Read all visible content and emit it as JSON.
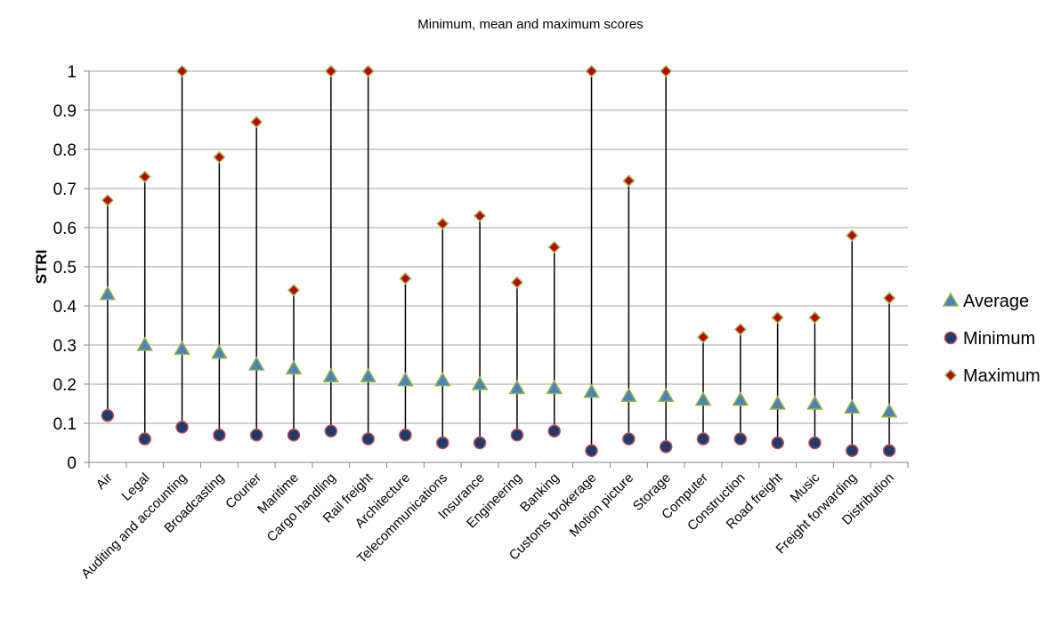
{
  "chart_data": {
    "type": "scatter",
    "title": "Minimum, mean and maximum scores",
    "xlabel": "",
    "ylabel": "STRI",
    "ylim": [
      0,
      1
    ],
    "yticks": [
      "0",
      "0.1",
      "0.2",
      "0.3",
      "0.4",
      "0.5",
      "0.6",
      "0.7",
      "0.8",
      "0.9",
      "1"
    ],
    "grid": true,
    "legend_position": "right",
    "categories": [
      "Air",
      "Legal",
      "Auditing and accounting",
      "Broadcasting",
      "Courier",
      "Maritime",
      "Cargo handling",
      "Rail freight",
      "Architecture",
      "Telecommunications",
      "Insurance",
      "Engineering",
      "Banking",
      "Customs brokerage",
      "Motion picture",
      "Storage",
      "Computer",
      "Construction",
      "Road freight",
      "Music",
      "Freight forwarding",
      "Distribution"
    ],
    "series": [
      {
        "name": "Average",
        "marker": "triangle",
        "color": "#4F81BD",
        "edge": "#8DB53E",
        "values": [
          0.43,
          0.3,
          0.29,
          0.28,
          0.25,
          0.24,
          0.22,
          0.22,
          0.21,
          0.21,
          0.2,
          0.19,
          0.19,
          0.18,
          0.17,
          0.17,
          0.16,
          0.16,
          0.15,
          0.15,
          0.14,
          0.13
        ]
      },
      {
        "name": "Minimum",
        "marker": "circle",
        "color": "#1F3A6E",
        "edge": "#C0504D",
        "values": [
          0.12,
          0.06,
          0.09,
          0.07,
          0.07,
          0.07,
          0.08,
          0.06,
          0.07,
          0.05,
          0.05,
          0.07,
          0.08,
          0.03,
          0.06,
          0.04,
          0.06,
          0.06,
          0.05,
          0.05,
          0.03,
          0.03
        ]
      },
      {
        "name": "Maximum",
        "marker": "diamond",
        "color": "#C00000",
        "edge": "#9BBB59",
        "values": [
          0.67,
          0.73,
          1.0,
          0.78,
          0.87,
          0.44,
          1.0,
          1.0,
          0.47,
          0.61,
          0.63,
          0.46,
          0.55,
          1.0,
          0.72,
          1.0,
          0.32,
          0.34,
          0.37,
          0.37,
          0.58,
          0.42
        ]
      }
    ],
    "range_line_color": "#000000",
    "grid_color": "#A6A6A6"
  }
}
